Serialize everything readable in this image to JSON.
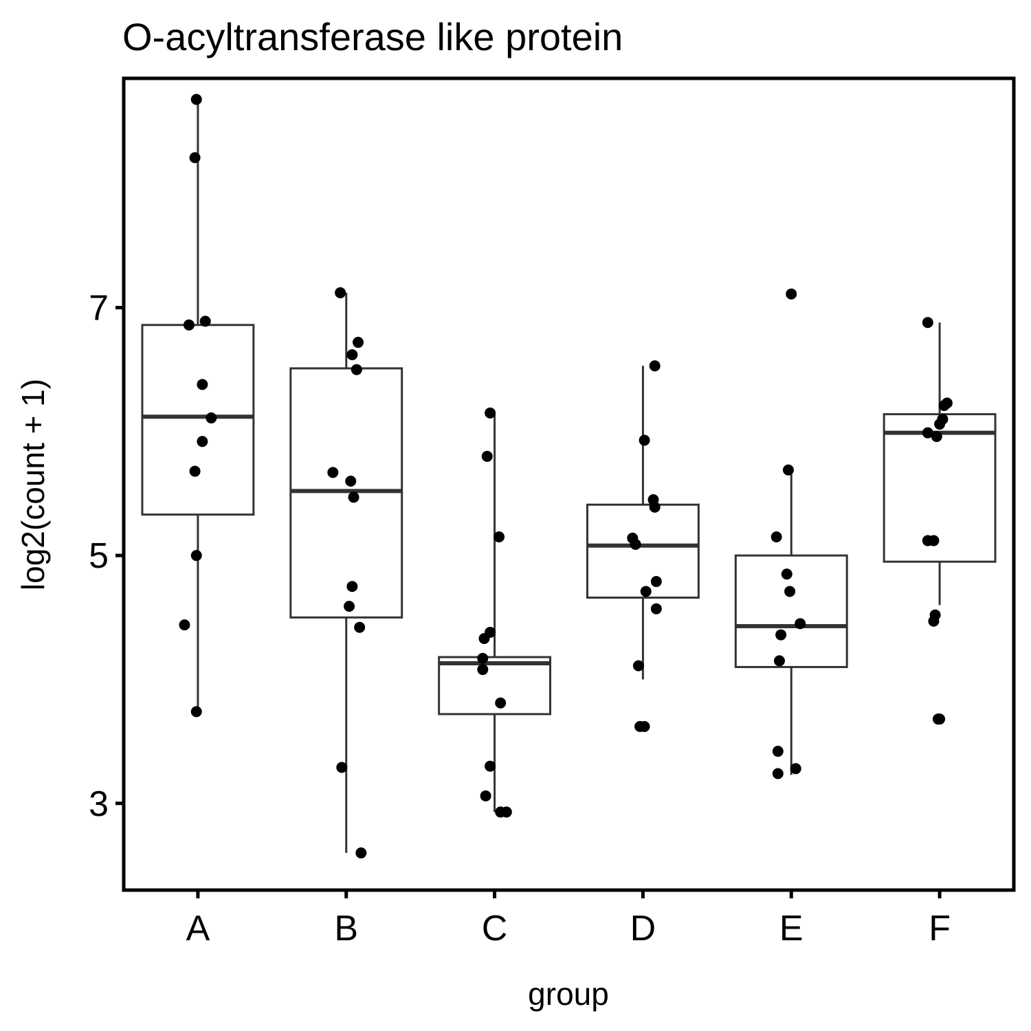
{
  "chart_data": {
    "type": "box",
    "title": "O-acyltransferase like protein",
    "xlabel": "group",
    "ylabel": "log2(count + 1)",
    "categories": [
      "A",
      "B",
      "C",
      "D",
      "E",
      "F"
    ],
    "y_ticks": [
      3,
      5,
      7
    ],
    "ylim": [
      2.3,
      8.85
    ],
    "grid": false,
    "boxes": [
      {
        "group": "A",
        "q1": 5.33,
        "median": 6.12,
        "q3": 6.86,
        "whisker_low": 3.74,
        "whisker_high": 8.68
      },
      {
        "group": "B",
        "q1": 4.5,
        "median": 5.52,
        "q3": 6.51,
        "whisker_low": 2.6,
        "whisker_high": 7.12
      },
      {
        "group": "C",
        "q1": 3.72,
        "median": 4.13,
        "q3": 4.18,
        "whisker_low": 2.93,
        "whisker_high": 6.15
      },
      {
        "group": "D",
        "q1": 4.66,
        "median": 5.08,
        "q3": 5.41,
        "whisker_low": 4.0,
        "whisker_high": 6.53
      },
      {
        "group": "E",
        "q1": 4.1,
        "median": 4.43,
        "q3": 5.0,
        "whisker_low": 3.23,
        "whisker_high": 5.68
      },
      {
        "group": "F",
        "q1": 4.95,
        "median": 5.99,
        "q3": 6.14,
        "whisker_low": 4.6,
        "whisker_high": 6.88
      }
    ],
    "points": [
      {
        "group": "A",
        "dx": -0.01,
        "y": 8.68
      },
      {
        "group": "A",
        "dx": -0.02,
        "y": 8.21
      },
      {
        "group": "A",
        "dx": -0.06,
        "y": 6.86
      },
      {
        "group": "A",
        "dx": 0.05,
        "y": 6.89
      },
      {
        "group": "A",
        "dx": 0.03,
        "y": 6.38
      },
      {
        "group": "A",
        "dx": 0.09,
        "y": 6.11
      },
      {
        "group": "A",
        "dx": 0.03,
        "y": 5.92
      },
      {
        "group": "A",
        "dx": -0.02,
        "y": 5.68
      },
      {
        "group": "A",
        "dx": -0.01,
        "y": 5.0
      },
      {
        "group": "A",
        "dx": -0.09,
        "y": 4.44
      },
      {
        "group": "A",
        "dx": -0.01,
        "y": 3.74
      },
      {
        "group": "B",
        "dx": -0.04,
        "y": 7.12
      },
      {
        "group": "B",
        "dx": 0.08,
        "y": 6.72
      },
      {
        "group": "B",
        "dx": 0.04,
        "y": 6.62
      },
      {
        "group": "B",
        "dx": 0.07,
        "y": 6.5
      },
      {
        "group": "B",
        "dx": -0.09,
        "y": 5.67
      },
      {
        "group": "B",
        "dx": 0.03,
        "y": 5.6
      },
      {
        "group": "B",
        "dx": 0.05,
        "y": 5.47
      },
      {
        "group": "B",
        "dx": 0.04,
        "y": 4.75
      },
      {
        "group": "B",
        "dx": 0.02,
        "y": 4.59
      },
      {
        "group": "B",
        "dx": 0.09,
        "y": 4.42
      },
      {
        "group": "B",
        "dx": -0.03,
        "y": 3.29
      },
      {
        "group": "B",
        "dx": 0.1,
        "y": 2.6
      },
      {
        "group": "C",
        "dx": -0.03,
        "y": 6.15
      },
      {
        "group": "C",
        "dx": -0.05,
        "y": 5.8
      },
      {
        "group": "C",
        "dx": 0.03,
        "y": 5.15
      },
      {
        "group": "C",
        "dx": -0.03,
        "y": 4.38
      },
      {
        "group": "C",
        "dx": -0.07,
        "y": 4.33
      },
      {
        "group": "C",
        "dx": -0.08,
        "y": 4.17
      },
      {
        "group": "C",
        "dx": -0.08,
        "y": 4.08
      },
      {
        "group": "C",
        "dx": 0.04,
        "y": 3.81
      },
      {
        "group": "C",
        "dx": -0.03,
        "y": 3.3
      },
      {
        "group": "C",
        "dx": -0.06,
        "y": 3.06
      },
      {
        "group": "C",
        "dx": 0.04,
        "y": 2.93
      },
      {
        "group": "C",
        "dx": 0.08,
        "y": 2.93
      },
      {
        "group": "D",
        "dx": 0.08,
        "y": 6.53
      },
      {
        "group": "D",
        "dx": 0.01,
        "y": 5.93
      },
      {
        "group": "D",
        "dx": 0.07,
        "y": 5.45
      },
      {
        "group": "D",
        "dx": 0.08,
        "y": 5.39
      },
      {
        "group": "D",
        "dx": -0.07,
        "y": 5.14
      },
      {
        "group": "D",
        "dx": -0.05,
        "y": 5.09
      },
      {
        "group": "D",
        "dx": 0.09,
        "y": 4.79
      },
      {
        "group": "D",
        "dx": 0.02,
        "y": 4.71
      },
      {
        "group": "D",
        "dx": 0.09,
        "y": 4.57
      },
      {
        "group": "D",
        "dx": -0.03,
        "y": 4.11
      },
      {
        "group": "D",
        "dx": -0.02,
        "y": 3.62
      },
      {
        "group": "D",
        "dx": 0.01,
        "y": 3.62
      },
      {
        "group": "E",
        "dx": 0.0,
        "y": 7.11
      },
      {
        "group": "E",
        "dx": -0.02,
        "y": 5.69
      },
      {
        "group": "E",
        "dx": -0.1,
        "y": 5.15
      },
      {
        "group": "E",
        "dx": -0.03,
        "y": 4.85
      },
      {
        "group": "E",
        "dx": -0.01,
        "y": 4.71
      },
      {
        "group": "E",
        "dx": 0.06,
        "y": 4.45
      },
      {
        "group": "E",
        "dx": -0.07,
        "y": 4.36
      },
      {
        "group": "E",
        "dx": -0.08,
        "y": 4.15
      },
      {
        "group": "E",
        "dx": 0.03,
        "y": 3.28
      },
      {
        "group": "E",
        "dx": -0.09,
        "y": 3.42
      },
      {
        "group": "E",
        "dx": -0.09,
        "y": 3.24
      },
      {
        "group": "F",
        "dx": -0.08,
        "y": 6.88
      },
      {
        "group": "F",
        "dx": 0.05,
        "y": 6.23
      },
      {
        "group": "F",
        "dx": 0.03,
        "y": 6.21
      },
      {
        "group": "F",
        "dx": 0.02,
        "y": 6.1
      },
      {
        "group": "F",
        "dx": 0.0,
        "y": 6.06
      },
      {
        "group": "F",
        "dx": -0.08,
        "y": 5.99
      },
      {
        "group": "F",
        "dx": -0.02,
        "y": 5.96
      },
      {
        "group": "F",
        "dx": -0.08,
        "y": 5.12
      },
      {
        "group": "F",
        "dx": -0.04,
        "y": 5.12
      },
      {
        "group": "F",
        "dx": -0.03,
        "y": 4.52
      },
      {
        "group": "F",
        "dx": -0.04,
        "y": 4.47
      },
      {
        "group": "F",
        "dx": -0.01,
        "y": 3.68
      },
      {
        "group": "F",
        "dx": 0.0,
        "y": 3.68
      }
    ]
  }
}
